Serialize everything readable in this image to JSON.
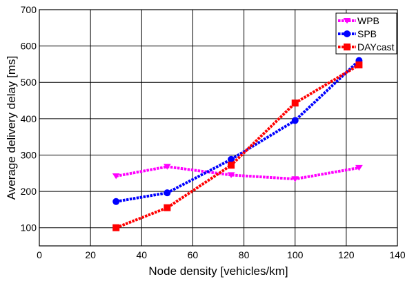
{
  "chart_data": {
    "type": "line",
    "title": "",
    "xlabel": "Node density [vehicles/km]",
    "ylabel": "Average delivery delay [ms]",
    "xlim": [
      0,
      140
    ],
    "ylim": [
      50,
      700
    ],
    "x_ticks": [
      0,
      20,
      40,
      60,
      80,
      100,
      120,
      140
    ],
    "y_ticks": [
      100,
      200,
      300,
      400,
      500,
      600,
      700
    ],
    "grid": true,
    "legend_position": "top-right",
    "series": [
      {
        "name": "WPB",
        "color": "#ff00ff",
        "marker": "triangle-down",
        "x": [
          30,
          50,
          75,
          100,
          125
        ],
        "y": [
          242,
          268,
          245,
          234,
          265
        ]
      },
      {
        "name": "SPB",
        "color": "#0000ff",
        "marker": "circle",
        "x": [
          30,
          50,
          75,
          100,
          125
        ],
        "y": [
          172,
          196,
          288,
          395,
          560
        ]
      },
      {
        "name": "DAYcast",
        "color": "#ff0000",
        "marker": "square",
        "x": [
          30,
          50,
          75,
          100,
          125
        ],
        "y": [
          100,
          155,
          272,
          443,
          548
        ]
      }
    ]
  }
}
